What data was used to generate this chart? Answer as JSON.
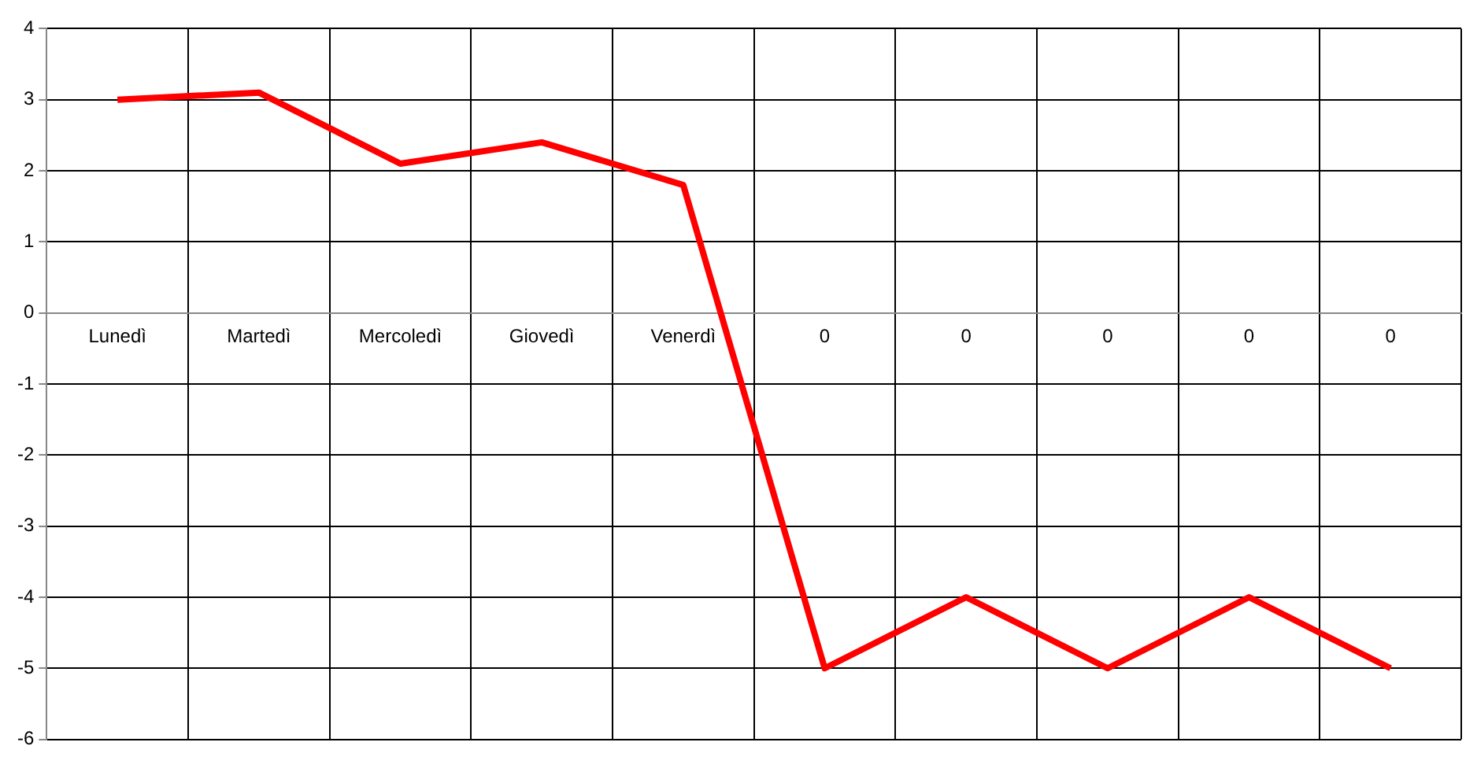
{
  "chart_data": {
    "type": "line",
    "categories": [
      "Lunedì",
      "Martedì",
      "Mercoledì",
      "Giovedì",
      "Venerdì",
      "0",
      "0",
      "0",
      "0",
      "0"
    ],
    "series": [
      {
        "color": "#ff0000",
        "values": [
          3,
          3.1,
          2.1,
          2.4,
          1.8,
          -5,
          -4,
          -5,
          -4,
          -5
        ]
      }
    ],
    "ylim": [
      -6,
      4
    ],
    "yticks": [
      -6,
      -5,
      -4,
      -3,
      -2,
      -1,
      0,
      1,
      2,
      3,
      4
    ],
    "grid": true,
    "legend": false,
    "marker": "none",
    "line_style": "solid"
  }
}
